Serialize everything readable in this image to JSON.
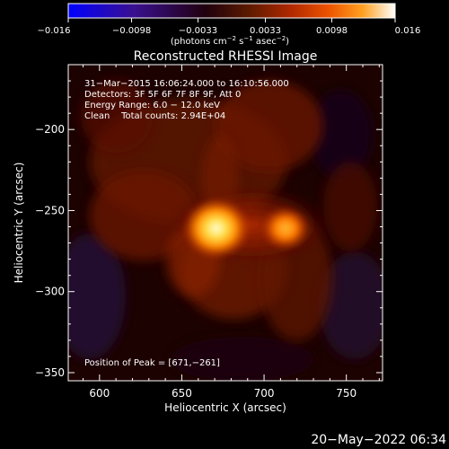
{
  "chart_data": {
    "type": "heatmap",
    "title": "Reconstructed RHESSI Image",
    "xlabel": "Heliocentric X (arcsec)",
    "ylabel": "Heliocentric Y (arcsec)",
    "xlim": [
      581,
      772
    ],
    "ylim": [
      -355,
      -160
    ],
    "x_ticks": [
      600,
      650,
      700,
      750
    ],
    "y_ticks": [
      -350,
      -300,
      -250,
      -200
    ],
    "x_tick_labels": [
      "600",
      "650",
      "700",
      "750"
    ],
    "y_tick_labels": [
      "−350",
      "−300",
      "−250",
      "−200"
    ],
    "colorbar": {
      "range": [
        -0.016,
        0.016
      ],
      "ticks": [
        -0.016,
        -0.0098,
        -0.0033,
        0.0033,
        0.0098,
        0.016
      ],
      "tick_labels": [
        "−0.016",
        "−0.0098",
        "−0.0033",
        "0.0033",
        "0.0098",
        "0.016"
      ],
      "units_main": "(photons cm",
      "units_exp1": "−2",
      "units_mid": " s",
      "units_exp2": "−1",
      "units_end": " asec",
      "units_exp3": "−2",
      "units_close": ")"
    },
    "info_lines": [
      "31−Mar−2015 16:06:24.000 to 16:10:56.000",
      "Detectors: 3F 5F 6F 7F 8F 9F, Att 0",
      "Energy Range: 6.0 − 12.0 keV",
      "Clean    Total counts: 2.94E+04"
    ],
    "peak_text": "Position of Peak = [671,−261]",
    "sources": [
      {
        "x": 671,
        "y": -261,
        "peak": 0.016
      },
      {
        "x": 713,
        "y": -261,
        "peak": 0.0115
      }
    ],
    "colors": {
      "cmap": [
        "#0000ff",
        "#3a1090",
        "#26001a",
        "#5a1a00",
        "#a02000",
        "#e04000",
        "#ff8000",
        "#ffd020",
        "#ffffff"
      ],
      "background": "#000000",
      "text": "#ffffff"
    }
  },
  "footer": {
    "timestamp": "20−May−2022 06:34"
  }
}
